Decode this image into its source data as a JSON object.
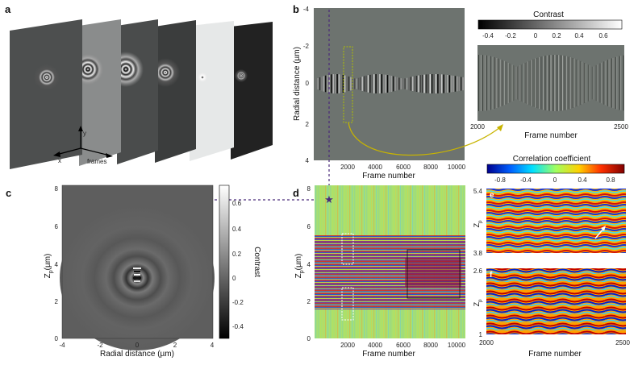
{
  "panels": {
    "a": {
      "label": "a",
      "axes": {
        "y": "y",
        "x": "x",
        "frames": "frames"
      }
    },
    "b": {
      "label": "b",
      "ylabel": "Radial distance (µm)",
      "xlabel": "Frame number",
      "yticks": [
        "-4",
        "-2",
        "0",
        "2",
        "4"
      ],
      "xticks": [
        "2000",
        "4000",
        "6000",
        "8000",
        "10000"
      ],
      "colorbar_title": "Contrast",
      "colorbar_ticks": [
        "-0.4",
        "-0.2",
        "0",
        "0.2",
        "0.4",
        "0.6"
      ],
      "inset_xticks": [
        "2000",
        "2500"
      ],
      "inset_xlabel": "Frame number"
    },
    "c": {
      "label": "c",
      "ylabel_main": "Z",
      "ylabel_sub": "p",
      "ylabel_unit": "(µm)",
      "xlabel": "Radial distance (µm)",
      "yticks": [
        "0",
        "2",
        "4",
        "6",
        "8"
      ],
      "xticks": [
        "-4",
        "-2",
        "0",
        "2",
        "4"
      ],
      "colorbar_title": "Contrast",
      "colorbar_ticks": [
        "0.6",
        "0.4",
        "0.2",
        "0",
        "-0.2",
        "-0.4"
      ]
    },
    "d": {
      "label": "d",
      "ylabel_main": "Z",
      "ylabel_sub": "p",
      "ylabel_unit": "(µm)",
      "xlabel": "Frame number",
      "yticks": [
        "0",
        "2",
        "4",
        "6",
        "8"
      ],
      "xticks": [
        "2000",
        "4000",
        "6000",
        "8000",
        "10000"
      ],
      "colorbar_title": "Correlation coefficient",
      "colorbar_ticks": [
        "-0.8",
        "-0.4",
        "0",
        "0.4",
        "0.8"
      ]
    },
    "e": {
      "label": "e",
      "yticks": [
        "5.4",
        "3.8"
      ],
      "ylabel_main": "Z",
      "ylabel_sub": "p"
    },
    "f": {
      "label": "f",
      "yticks": [
        "2.6",
        "1"
      ],
      "ylabel_main": "Z",
      "ylabel_sub": "p",
      "xticks": [
        "2000",
        "2500"
      ],
      "xlabel": "Frame number"
    }
  },
  "colors": {
    "purple_dashed": "#4a2a7a",
    "arrow": "#c8b400",
    "box_b": "#b0c000",
    "box_d_white": "#ffffff",
    "box_d_black": "#111111",
    "jet": [
      "#00008f",
      "#0060ff",
      "#00e0ff",
      "#a0ff60",
      "#ffd000",
      "#ff3000",
      "#800000"
    ]
  }
}
